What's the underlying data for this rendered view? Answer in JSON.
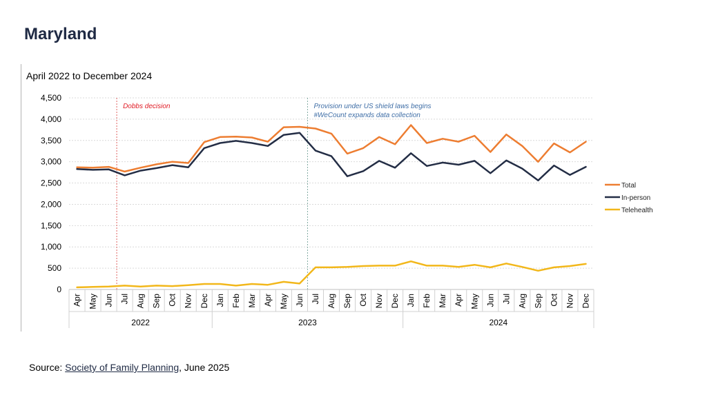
{
  "page": {
    "title": "Maryland",
    "source_prefix": "Source: ",
    "source_link": "Society of Family Planning",
    "source_suffix": ", June 2025"
  },
  "colors": {
    "total": "#ed7d31",
    "in_person": "#232d45",
    "telehealth": "#f2b71a",
    "dobbs_line": "#e0605f",
    "dobbs_text": "#e01b24",
    "shield_line": "#7fa8a0",
    "annotation_text": "#3f6ea6",
    "grid": "#d9d9d9",
    "axis_text": "#000000"
  },
  "chart_data": {
    "type": "line",
    "title": "April 2022 to December 2024",
    "xlabel": "",
    "ylabel": "",
    "ylim": [
      0,
      4500
    ],
    "yticks": [
      0,
      500,
      1000,
      1500,
      2000,
      2500,
      3000,
      3500,
      4000,
      4500
    ],
    "ytick_labels": [
      "0",
      "500",
      "1,000",
      "1,500",
      "2,000",
      "2,500",
      "3,000",
      "3,500",
      "4,000",
      "4,500"
    ],
    "grid": true,
    "legend_position": "right",
    "categories": [
      "Apr",
      "May",
      "Jun",
      "Jul",
      "Aug",
      "Sep",
      "Oct",
      "Nov",
      "Dec",
      "Jan",
      "Feb",
      "Mar",
      "Apr",
      "May",
      "Jun",
      "Jul",
      "Aug",
      "Sep",
      "Oct",
      "Nov",
      "Dec",
      "Jan",
      "Feb",
      "Mar",
      "Apr",
      "May",
      "Jun",
      "Jul",
      "Aug",
      "Sep",
      "Oct",
      "Nov",
      "Dec"
    ],
    "year_groups": [
      {
        "label": "2022",
        "start": 0,
        "end": 8
      },
      {
        "label": "2023",
        "start": 9,
        "end": 20
      },
      {
        "label": "2024",
        "start": 21,
        "end": 32
      }
    ],
    "series": [
      {
        "name": "Total",
        "color_key": "total",
        "values": [
          2870,
          2860,
          2880,
          2770,
          2860,
          2940,
          3000,
          2970,
          3460,
          3580,
          3590,
          3570,
          3470,
          3810,
          3820,
          3780,
          3660,
          3190,
          3320,
          3580,
          3410,
          3860,
          3440,
          3540,
          3470,
          3610,
          3230,
          3640,
          3370,
          3000,
          3430,
          3220,
          3470
        ]
      },
      {
        "name": "In-person",
        "color_key": "in_person",
        "values": [
          2830,
          2810,
          2820,
          2680,
          2790,
          2850,
          2920,
          2870,
          3320,
          3440,
          3490,
          3440,
          3370,
          3630,
          3680,
          3260,
          3130,
          2660,
          2780,
          3020,
          2860,
          3200,
          2900,
          2980,
          2930,
          3020,
          2730,
          3030,
          2840,
          2560,
          2910,
          2690,
          2880
        ]
      },
      {
        "name": "Telehealth",
        "color_key": "telehealth",
        "values": [
          50,
          60,
          70,
          90,
          70,
          90,
          80,
          100,
          130,
          130,
          90,
          130,
          110,
          180,
          140,
          520,
          520,
          530,
          550,
          560,
          560,
          660,
          560,
          560,
          530,
          580,
          520,
          610,
          530,
          440,
          520,
          550,
          600
        ]
      }
    ],
    "annotations": [
      {
        "label": "Dobbs decision",
        "x_after_index": 2,
        "color_key": "dobbs_text",
        "line_color_key": "dobbs_line"
      },
      {
        "label": "Provision under US shield laws begins",
        "label2": "#WeCount expands data collection",
        "x_after_index": 14,
        "color_key": "annotation_text",
        "line_color_key": "shield_line"
      }
    ]
  }
}
